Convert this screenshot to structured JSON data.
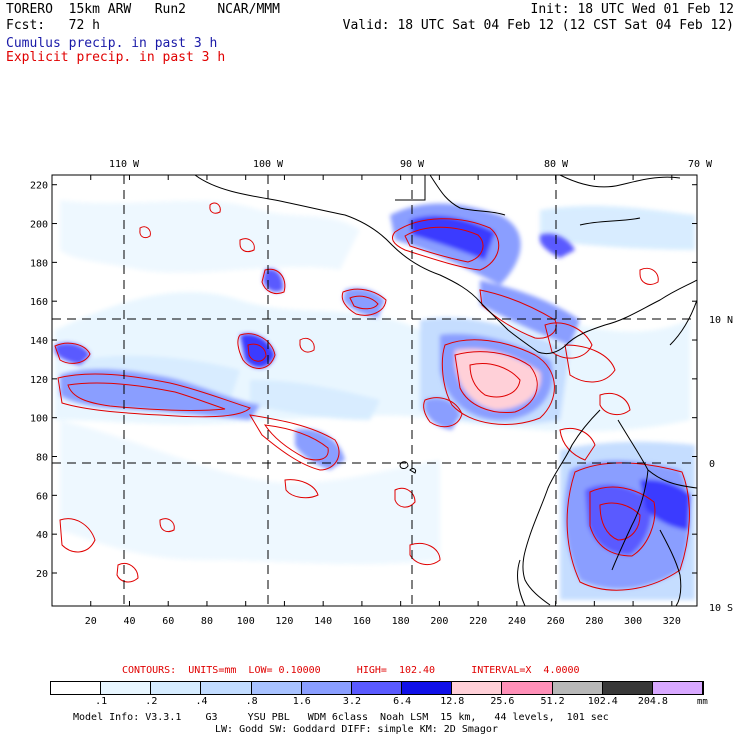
{
  "header": {
    "left_line1": "TORERO  15km ARW   Run2    NCAR/MMM",
    "left_line2": "Fcst:   72 h",
    "right_line1": "Init: 18 UTC Wed 01 Feb 12",
    "right_line2": "Valid: 18 UTC Sat 04 Feb 12 (12 CST Sat 04 Feb 12)",
    "cumulus_label": "Cumulus precip. in past 3 h",
    "explicit_label": "Explicit precip. in past 3 h",
    "cumulus_color": "#1a1aa8",
    "explicit_color": "#e00000"
  },
  "map": {
    "top_lon_labels": [
      "110 W",
      "100 W",
      "90 W",
      "80 W",
      "70 W"
    ],
    "right_lat_labels": [
      "10 N",
      "0",
      "10 S"
    ],
    "y_ticks": [
      "220",
      "200",
      "180",
      "160",
      "140",
      "120",
      "100",
      "80",
      "60",
      "40",
      "20"
    ],
    "x_ticks": [
      "20",
      "40",
      "60",
      "80",
      "100",
      "120",
      "140",
      "160",
      "180",
      "200",
      "220",
      "240",
      "260",
      "280",
      "300",
      "320"
    ],
    "x_range": [
      0,
      333
    ],
    "y_range": [
      3,
      225
    ]
  },
  "footer": {
    "contours_text": "CONTOURS:  UNITS=mm  LOW= 0.10000      HIGH=  102.40      INTERVAL=X  4.0000",
    "colorbar_labels": [
      ".1",
      ".2",
      ".4",
      ".8",
      "1.6",
      "3.2",
      "6.4",
      "12.8",
      "25.6",
      "51.2",
      "102.4",
      "204.8"
    ],
    "colorbar_units": "mm",
    "colorbar_colors": [
      "#ffffff",
      "#e8f6ff",
      "#d6ecff",
      "#c2dcff",
      "#a8c2ff",
      "#8a9eff",
      "#5a5aff",
      "#1010e8",
      "#ffd0d8",
      "#ff90b8",
      "#b8b8b8",
      "#383838",
      "#d8a8ff"
    ],
    "model_info_line1": "Model Info: V3.3.1    G3     YSU PBL   WDM 6class  Noah LSM  15 km,   44 levels,  101 sec",
    "model_info_line2": "LW: Godd SW: Goddard DIFF: simple KM: 2D Smagor"
  }
}
